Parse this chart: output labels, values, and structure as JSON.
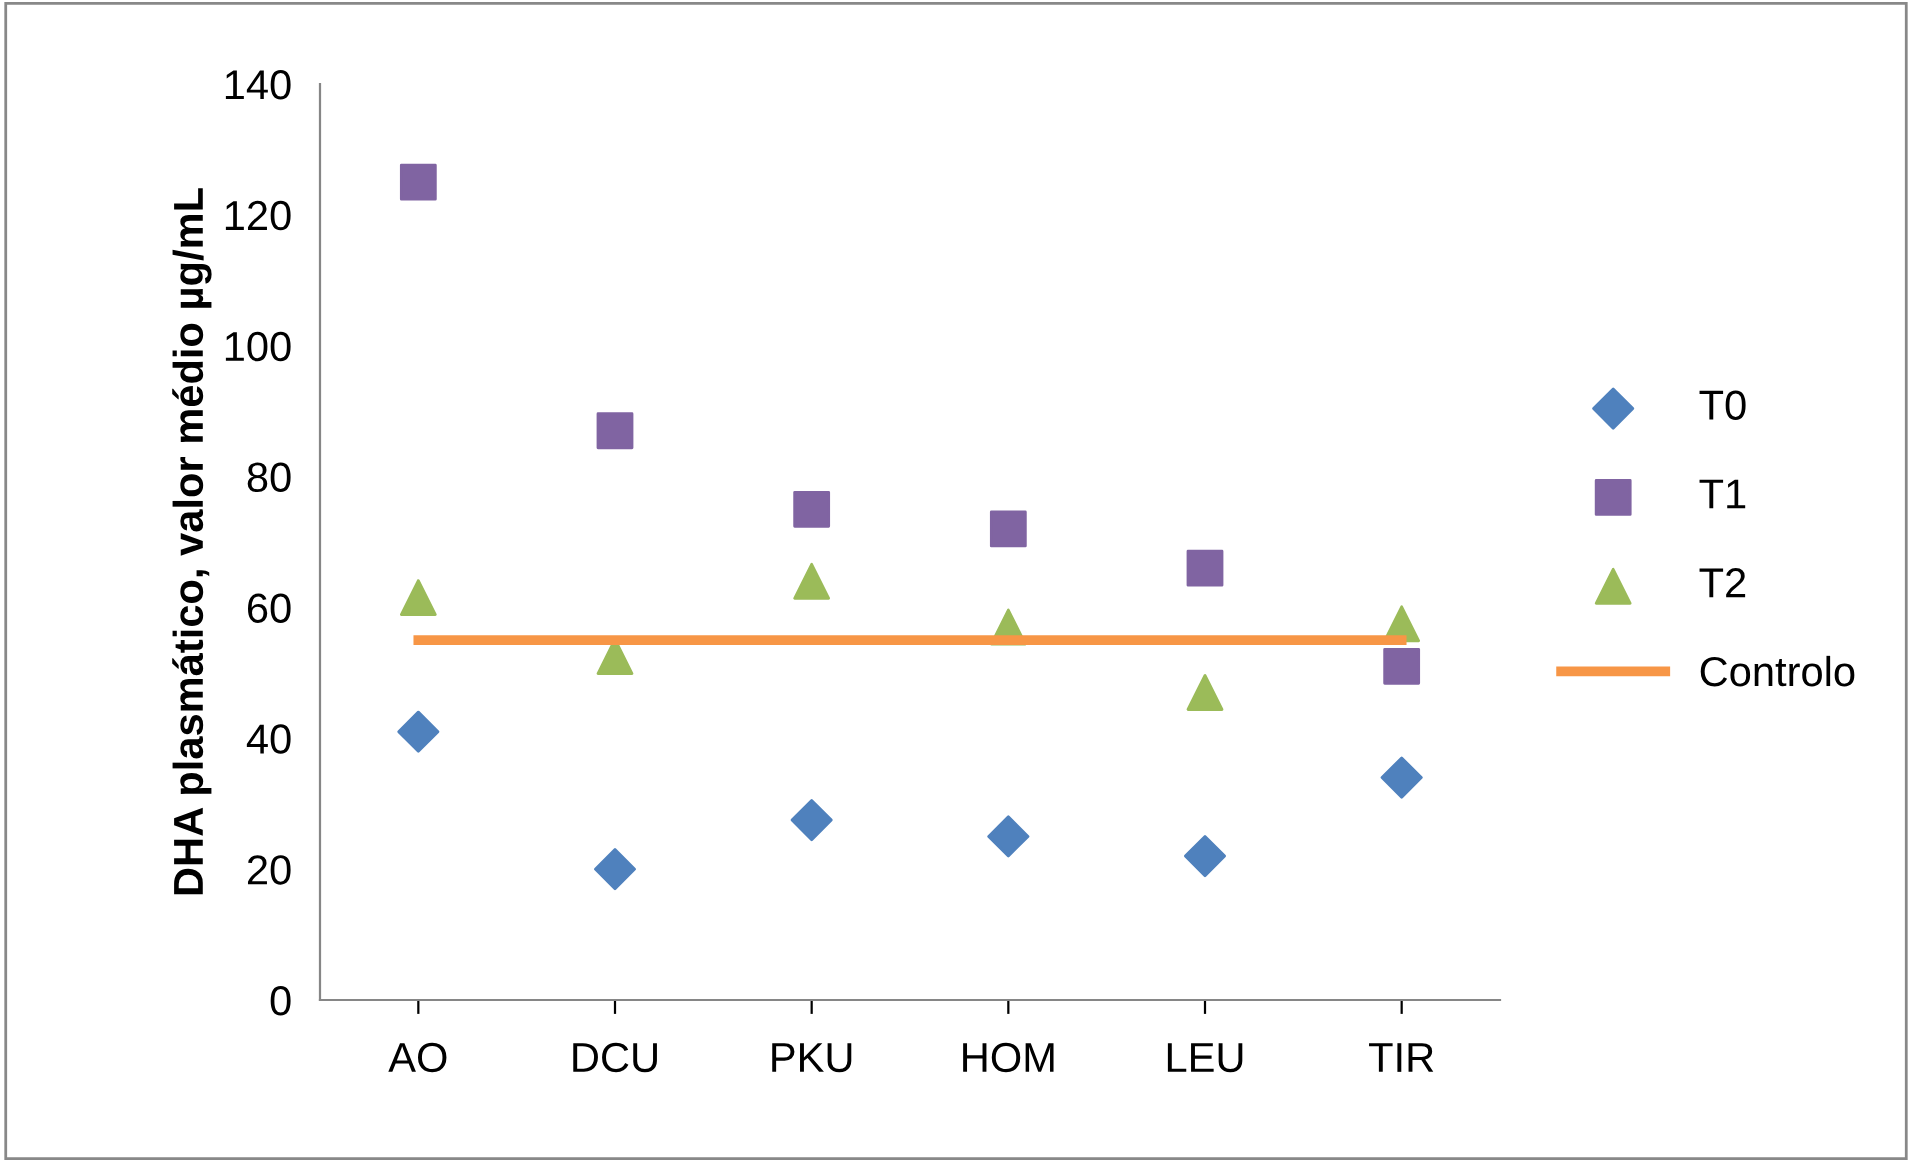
{
  "chart_data": {
    "type": "scatter",
    "ylabel": "DHA plasmático, valor médio µg/mL",
    "categories": [
      "AO",
      "DCU",
      "PKU",
      "HOM",
      "LEU",
      "TIR"
    ],
    "ylim": [
      0,
      140
    ],
    "yticks": [
      0,
      20,
      40,
      60,
      80,
      100,
      120,
      140
    ],
    "grid": false,
    "legend": "right",
    "series": [
      {
        "name": "T0",
        "color": "#4f81bd",
        "marker": "diamond",
        "values": [
          41,
          20,
          27.5,
          25,
          22,
          34
        ]
      },
      {
        "name": "T1",
        "color": "#8064a2",
        "marker": "square",
        "values": [
          125,
          87,
          75,
          72,
          66,
          51
        ]
      },
      {
        "name": "T2",
        "color": "#9bbb59",
        "marker": "triangle",
        "values": [
          61.5,
          52.5,
          64,
          57,
          47,
          57.5
        ]
      },
      {
        "name": "Controlo",
        "color": "#f79646",
        "type": "line",
        "marker": "none",
        "line_style": "solid",
        "values": [
          55,
          55,
          55,
          55,
          55,
          55
        ]
      }
    ]
  }
}
